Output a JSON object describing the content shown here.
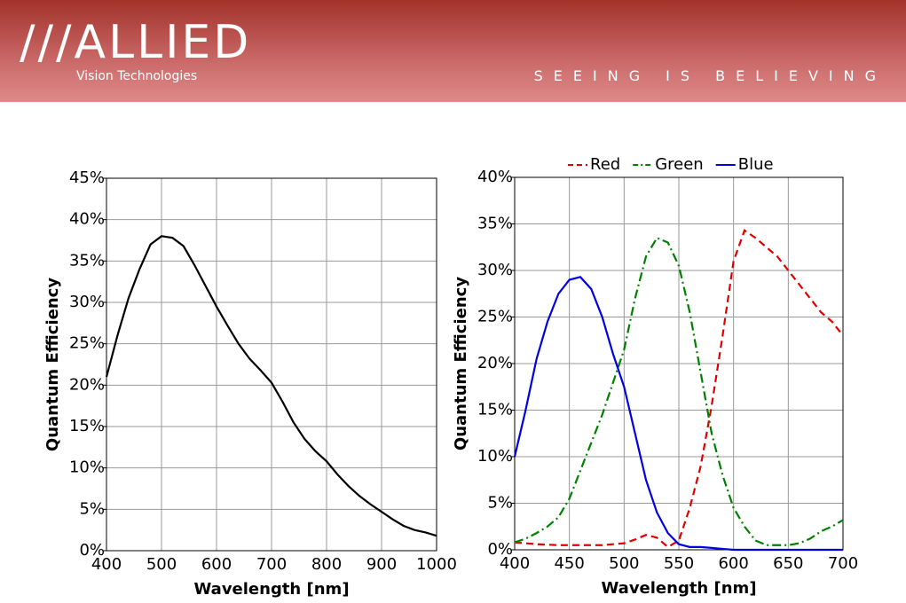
{
  "header": {
    "logo": "///ALLIED",
    "logo_subtitle": "Vision Technologies",
    "tagline": "SEEING IS BELIEVING"
  },
  "chart_data": [
    {
      "type": "line",
      "x_label": "Wavelength [nm]",
      "y_label": "Quantum Efficiency",
      "color": "#000000",
      "grid": true,
      "x": [
        400,
        420,
        440,
        460,
        480,
        500,
        520,
        540,
        560,
        580,
        600,
        620,
        640,
        660,
        680,
        700,
        720,
        740,
        760,
        780,
        800,
        820,
        840,
        860,
        880,
        900,
        920,
        940,
        960,
        980,
        1000
      ],
      "values": [
        21,
        26,
        30.5,
        34,
        37,
        38,
        37.8,
        36.8,
        34.5,
        32,
        29.5,
        27.2,
        25,
        23.2,
        21.8,
        20.3,
        18,
        15.5,
        13.5,
        12,
        10.8,
        9.2,
        7.8,
        6.6,
        5.6,
        4.7,
        3.8,
        3.0,
        2.5,
        2.2,
        1.8
      ],
      "xlim": [
        400,
        1000
      ],
      "xticks": [
        400,
        500,
        600,
        700,
        800,
        900,
        1000
      ],
      "ylim": [
        0,
        45
      ],
      "yticks": [
        {
          "value": 0,
          "label": "0%"
        },
        {
          "value": 5,
          "label": "5%"
        },
        {
          "value": 10,
          "label": "10%"
        },
        {
          "value": 15,
          "label": "15%"
        },
        {
          "value": 20,
          "label": "20%"
        },
        {
          "value": 25,
          "label": "25%"
        },
        {
          "value": 30,
          "label": "30%"
        },
        {
          "value": 35,
          "label": "35%"
        },
        {
          "value": 40,
          "label": "40%"
        },
        {
          "value": 45,
          "label": "45%"
        }
      ]
    },
    {
      "type": "line",
      "x_label": "Wavelength [nm]",
      "y_label": "Quantum Efficiency",
      "grid": true,
      "legend": "top",
      "x": [
        400,
        410,
        420,
        430,
        440,
        450,
        460,
        470,
        480,
        490,
        500,
        510,
        520,
        530,
        540,
        550,
        560,
        570,
        580,
        590,
        600,
        610,
        620,
        630,
        640,
        650,
        660,
        670,
        680,
        690,
        700
      ],
      "series": [
        {
          "name": "Red",
          "color": "#e00000",
          "line_style": "dashed",
          "values": [
            0.8,
            0.7,
            0.6,
            0.55,
            0.5,
            0.5,
            0.5,
            0.5,
            0.5,
            0.6,
            0.7,
            1.1,
            1.6,
            1.3,
            0.3,
            1,
            4.5,
            9,
            15.5,
            23,
            31,
            34.3,
            33.5,
            32.5,
            31.5,
            30,
            28.5,
            27,
            25.5,
            24.5,
            23
          ]
        },
        {
          "name": "Green",
          "color": "#008000",
          "line_style": "dashdot",
          "values": [
            0.8,
            1.2,
            1.8,
            2.5,
            3.5,
            5.5,
            8.5,
            11.5,
            14.5,
            18,
            21.5,
            27,
            31.5,
            33.5,
            33,
            30.5,
            25.5,
            19,
            12.5,
            8,
            4.5,
            2.5,
            1,
            0.5,
            0.5,
            0.5,
            0.7,
            1.2,
            2,
            2.5,
            3.2
          ]
        },
        {
          "name": "Blue",
          "color": "#0000e0",
          "line_style": "solid",
          "values": [
            10,
            15,
            20.5,
            24.5,
            27.5,
            29,
            29.3,
            28,
            25,
            21,
            17.5,
            12.5,
            7.5,
            4,
            1.8,
            0.6,
            0.3,
            0.3,
            0.2,
            0.1,
            0,
            0,
            0,
            0,
            0,
            0,
            0,
            0,
            0,
            0,
            0
          ]
        }
      ],
      "xlim": [
        400,
        700
      ],
      "xticks": [
        400,
        450,
        500,
        550,
        600,
        650,
        700
      ],
      "ylim": [
        0,
        40
      ],
      "yticks": [
        {
          "value": 0,
          "label": "0%"
        },
        {
          "value": 5,
          "label": "5%"
        },
        {
          "value": 10,
          "label": "10%"
        },
        {
          "value": 15,
          "label": "15%"
        },
        {
          "value": 20,
          "label": "20%"
        },
        {
          "value": 25,
          "label": "25%"
        },
        {
          "value": 30,
          "label": "30%"
        },
        {
          "value": 35,
          "label": "35%"
        },
        {
          "value": 40,
          "label": "40%"
        }
      ]
    }
  ]
}
